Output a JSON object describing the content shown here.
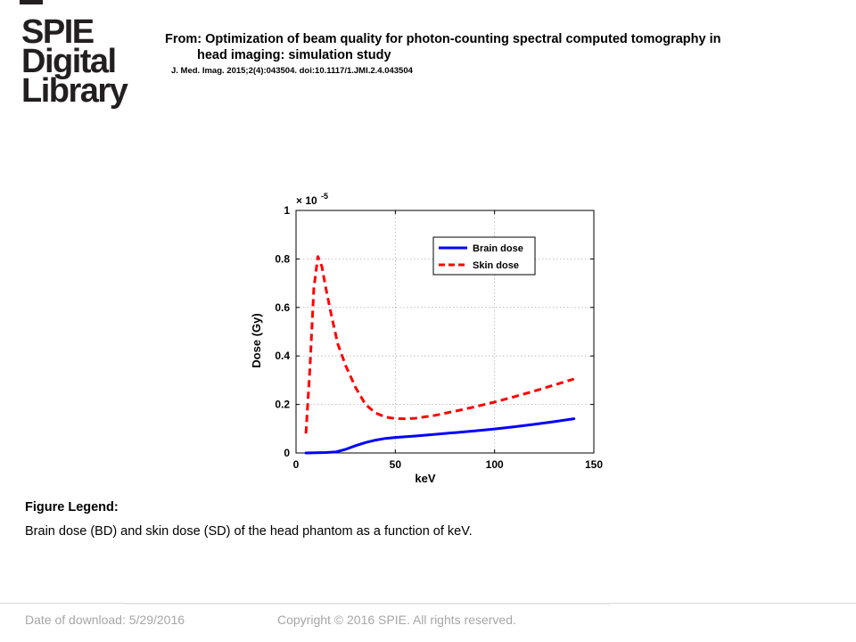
{
  "header": {
    "logo_lines": [
      "SPIE",
      "Digital",
      "Library"
    ],
    "from_line_1": "From: Optimization of beam quality for photon-counting spectral computed tomography in",
    "from_line_2": "head imaging: simulation study",
    "citation": "J. Med. Imag. 2015;2(4):043504. doi:10.1117/1.JMI.2.4.043504"
  },
  "chart_data": {
    "type": "line",
    "title": "",
    "xlabel": "keV",
    "ylabel": "Dose (Gy)",
    "y_exponent_label": "× 10",
    "y_exponent_power": "-5",
    "xlim": [
      0,
      150
    ],
    "ylim": [
      0,
      1
    ],
    "x_ticks": [
      "0",
      "50",
      "100",
      "150"
    ],
    "y_ticks": [
      "0",
      "0.2",
      "0.4",
      "0.6",
      "0.8",
      "1"
    ],
    "grid": true,
    "legend_position": "top-right",
    "series": [
      {
        "name": "Brain dose",
        "color": "#0000ff",
        "line_style": "solid",
        "x": [
          5,
          10,
          15,
          20,
          25,
          30,
          35,
          40,
          45,
          50,
          60,
          70,
          80,
          90,
          100,
          110,
          120,
          130,
          140
        ],
        "y": [
          0.0,
          0.001,
          0.002,
          0.004,
          0.015,
          0.03,
          0.043,
          0.053,
          0.06,
          0.064,
          0.07,
          0.077,
          0.084,
          0.091,
          0.099,
          0.108,
          0.118,
          0.129,
          0.141
        ]
      },
      {
        "name": "Skin dose",
        "color": "#ff0000",
        "line_style": "dashed",
        "x": [
          5,
          7,
          9,
          11,
          13,
          15,
          18,
          21,
          25,
          30,
          35,
          40,
          45,
          50,
          55,
          60,
          70,
          80,
          90,
          100,
          110,
          120,
          130,
          140
        ],
        "y": [
          0.08,
          0.35,
          0.68,
          0.81,
          0.77,
          0.68,
          0.56,
          0.45,
          0.36,
          0.27,
          0.2,
          0.165,
          0.148,
          0.142,
          0.141,
          0.143,
          0.155,
          0.172,
          0.19,
          0.21,
          0.232,
          0.255,
          0.28,
          0.305
        ]
      }
    ]
  },
  "figure_legend": {
    "title": "Figure Legend:",
    "text": "Brain dose (BD) and skin dose (SD) of the head phantom as a function of keV."
  },
  "footer": {
    "date": "Date of download:  5/29/2016",
    "copyright": "Copyright © 2016 SPIE. All rights reserved."
  }
}
